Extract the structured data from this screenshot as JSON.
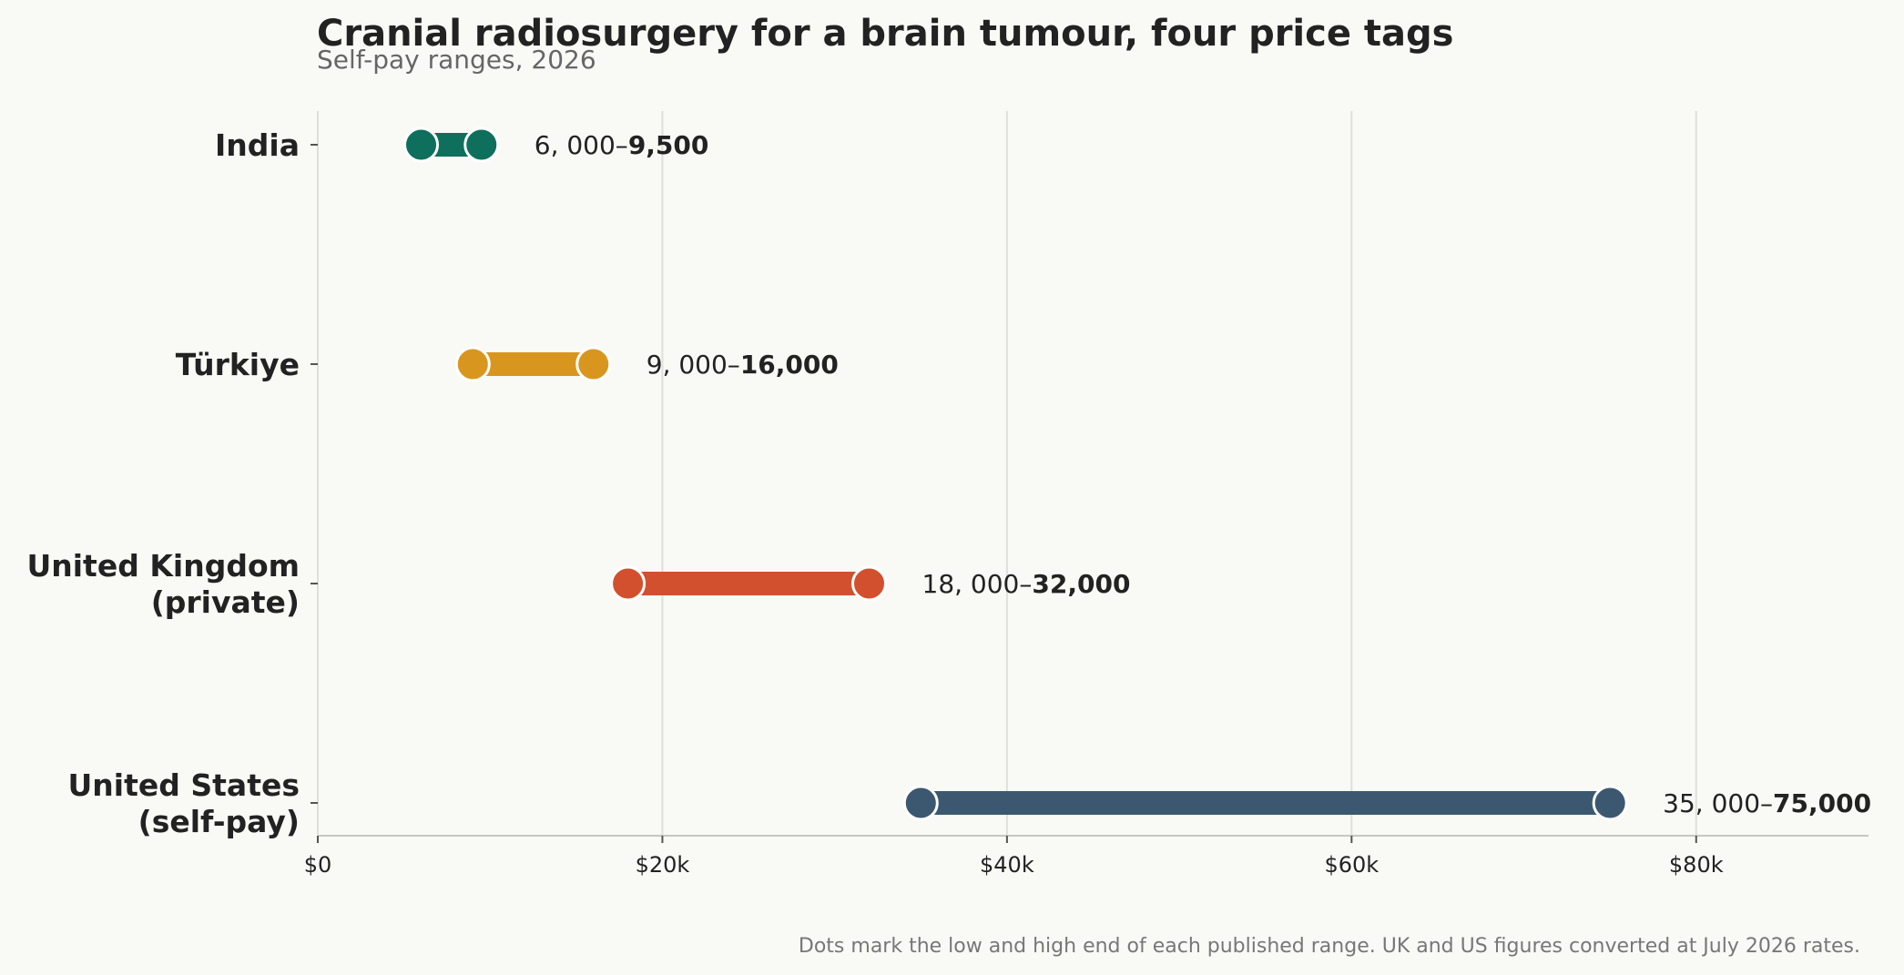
{
  "chart_data": {
    "type": "dumbbell",
    "title": "Cranial radiosurgery for a brain tumour, four price tags",
    "subtitle": "Self-pay ranges, 2026",
    "footnote": "Dots mark the low and high end of each published range. UK and US figures converted at July 2026 rates.",
    "xlim": [
      0,
      90000
    ],
    "grid": true,
    "x_ticks": [
      {
        "value": 0,
        "label": "$0"
      },
      {
        "value": 20000,
        "label": "$20k"
      },
      {
        "value": 40000,
        "label": "$40k"
      },
      {
        "value": 60000,
        "label": "$60k"
      },
      {
        "value": 80000,
        "label": "$80k"
      }
    ],
    "series": [
      {
        "category": [
          "India"
        ],
        "low": 6000,
        "high": 9500,
        "color": "#0e6f5c",
        "label_low": "6, 000–",
        "label_high": "9,500"
      },
      {
        "category": [
          "Türkiye"
        ],
        "low": 9000,
        "high": 16000,
        "color": "#d9961f",
        "label_low": "9, 000–",
        "label_high": "16,000"
      },
      {
        "category": [
          "United Kingdom",
          "(private)"
        ],
        "low": 18000,
        "high": 32000,
        "color": "#d2502e",
        "label_low": "18, 000–",
        "label_high": "32,000"
      },
      {
        "category": [
          "United States",
          "(self-pay)"
        ],
        "low": 35000,
        "high": 75000,
        "color": "#3b5870",
        "label_low": "35, 000–",
        "label_high": "75,000"
      }
    ]
  }
}
